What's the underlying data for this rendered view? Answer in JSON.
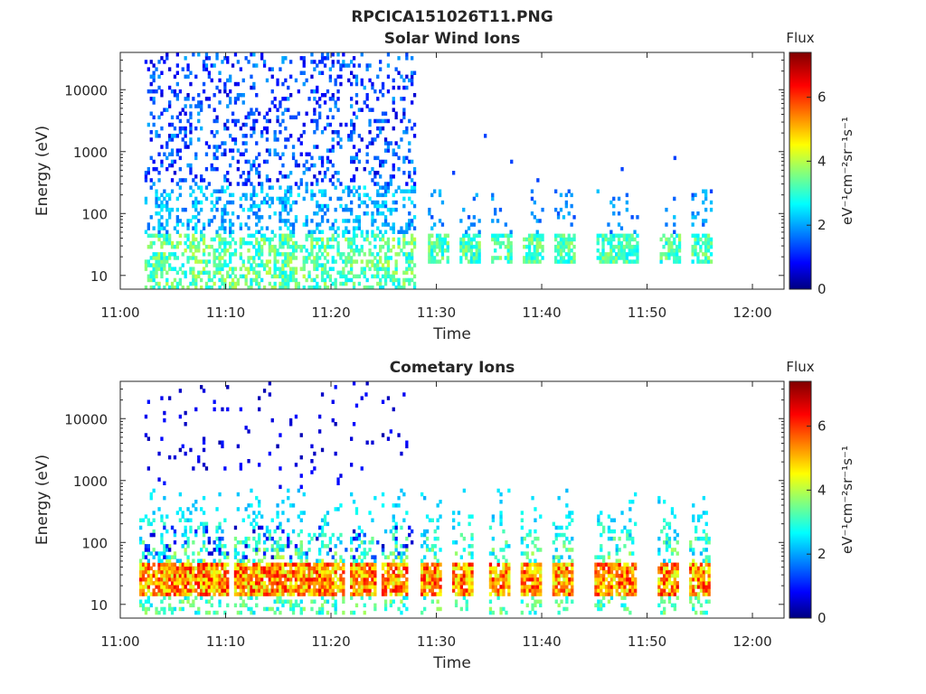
{
  "figure": {
    "title": "RPCICA151026T11.PNG"
  },
  "colormap": "jet",
  "chart_data": [
    {
      "type": "heatmap",
      "title": "Solar Wind Ions",
      "xlabel": "Time",
      "ylabel": "Energy (eV)",
      "x_ticks": [
        "11:00",
        "11:10",
        "11:20",
        "11:30",
        "11:40",
        "11:50",
        "12:00"
      ],
      "xlim_minutes": [
        0,
        63
      ],
      "y_scale": "log",
      "y_ticks": [
        "10",
        "100",
        "1000",
        "10000"
      ],
      "ylim": [
        6,
        40000
      ],
      "colorbar": {
        "title": "Flux",
        "label": "eV⁻¹cm⁻²sr⁻¹s⁻¹",
        "ticks": [
          "0",
          "2",
          "4",
          "6"
        ],
        "range": [
          0,
          7.4
        ]
      },
      "observations": {
        "dense_period_minutes": [
          2,
          28
        ],
        "sparse_bursts_minutes": [
          30,
          33,
          36,
          39,
          42,
          46,
          48,
          52,
          55
        ],
        "low_energy_band_eV": [
          10,
          50
        ],
        "high_energy_scatter_eV": [
          100,
          30000
        ],
        "typical_flux_low_energy": [
          3,
          4
        ],
        "typical_flux_high_energy": [
          1,
          2
        ]
      }
    },
    {
      "type": "heatmap",
      "title": "Cometary Ions",
      "xlabel": "Time",
      "ylabel": "Energy (eV)",
      "x_ticks": [
        "11:00",
        "11:10",
        "11:20",
        "11:30",
        "11:40",
        "11:50",
        "12:00"
      ],
      "xlim_minutes": [
        0,
        63
      ],
      "y_scale": "log",
      "y_ticks": [
        "10",
        "100",
        "1000",
        "10000"
      ],
      "ylim": [
        6,
        40000
      ],
      "colorbar": {
        "title": "Flux",
        "label": "eV⁻¹cm⁻²sr⁻¹s⁻¹",
        "ticks": [
          "0",
          "2",
          "4",
          "6"
        ],
        "range": [
          0,
          7.4
        ]
      },
      "observations": {
        "bursts_minutes": [
          3,
          5,
          7,
          9,
          12,
          14,
          16,
          18,
          20,
          23,
          26,
          29.5,
          32.5,
          36,
          39,
          42,
          46,
          48,
          52,
          55
        ],
        "core_energy_eV": [
          15,
          45
        ],
        "core_flux": [
          5,
          6.5
        ],
        "tail_energy_eV": [
          100,
          800
        ],
        "tail_flux": [
          2,
          4
        ]
      }
    }
  ]
}
